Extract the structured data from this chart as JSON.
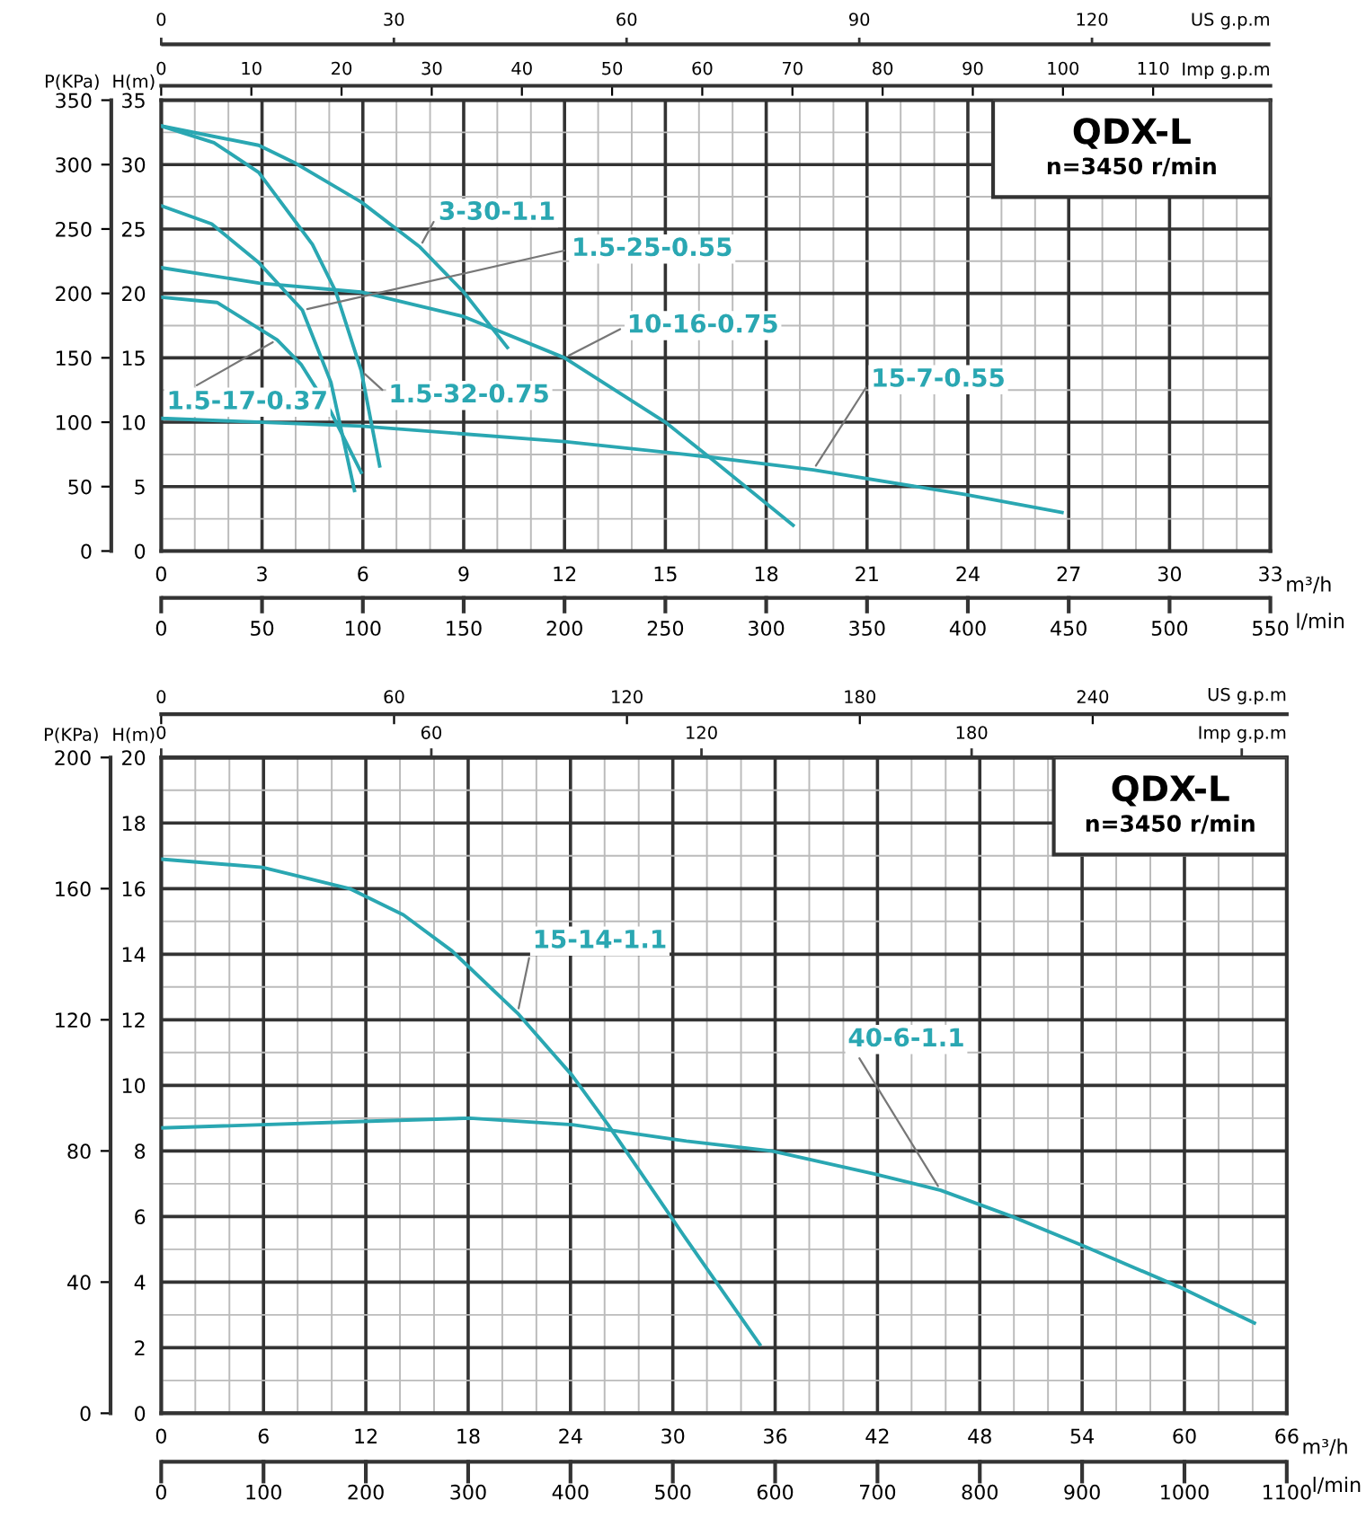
{
  "chart_data": [
    {
      "type": "line",
      "xlabel": "m³/h",
      "ylabel": "H(m)",
      "y2label": "P(KPa)",
      "x2label": "Imp g.p.m",
      "annotations": [
        "QDX-L",
        "n=3450 r/min",
        "US g.p.m",
        "0",
        "30",
        "60",
        "90",
        "120",
        "l/min",
        "0",
        "50",
        "100",
        "150",
        "200",
        "250",
        "300",
        "350",
        "400",
        "450",
        "500",
        "550"
      ],
      "xlim": [
        0,
        33
      ],
      "xticks": [
        0,
        3,
        6,
        9,
        12,
        15,
        18,
        21,
        24,
        27,
        30,
        33
      ],
      "ylim": [
        0,
        35
      ],
      "yticks": [
        0,
        5,
        10,
        15,
        20,
        25,
        30,
        35
      ],
      "y2lim": [
        0,
        350
      ],
      "y2ticks": [
        0,
        50,
        100,
        150,
        200,
        250,
        300,
        350
      ],
      "x2lim": [
        0,
        123
      ],
      "x2ticks": [
        0,
        10,
        20,
        30,
        40,
        50,
        60,
        70,
        80,
        90,
        100,
        110
      ],
      "grid": true,
      "series": [
        {
          "name": "1.5-32-0.75",
          "color": "#2aa7b2",
          "x": [
            0,
            1.57,
            2.9,
            4.5,
            5.2,
            5.95,
            6.5
          ],
          "values": [
            33.0,
            31.7,
            29.4,
            23.8,
            20.1,
            14.0,
            6.6
          ]
        },
        {
          "name": "3-30-1.1",
          "color": "#2aa7b2",
          "x": [
            0,
            2.9,
            4.0,
            5.95,
            7.7,
            9.0,
            10.3
          ],
          "values": [
            33.0,
            31.5,
            30.1,
            27.1,
            23.6,
            20.1,
            15.8
          ]
        },
        {
          "name": "1.5-25-0.55",
          "color": "#2aa7b2",
          "x": [
            0,
            1.5,
            2.9,
            4.2,
            5.05,
            5.75
          ],
          "values": [
            26.8,
            25.4,
            22.4,
            18.7,
            13.1,
            4.7
          ]
        },
        {
          "name": "1.5-17-0.37",
          "color": "#2aa7b2",
          "x": [
            0,
            1.66,
            3.45,
            4.16,
            5.05,
            5.95
          ],
          "values": [
            19.7,
            19.3,
            16.4,
            14.5,
            10.8,
            6.1
          ]
        },
        {
          "name": "10-16-0.75",
          "color": "#2aa7b2",
          "x": [
            0,
            2.9,
            5.95,
            9.0,
            12,
            15,
            16.3,
            18.8
          ],
          "values": [
            22.0,
            20.8,
            20.1,
            18.2,
            15.0,
            10.0,
            7.3,
            2.0
          ]
        },
        {
          "name": "15-7-0.55",
          "color": "#2aa7b2",
          "x": [
            0,
            5.95,
            12,
            15.6,
            16.3,
            19.4,
            23.9,
            26.8
          ],
          "values": [
            10.3,
            9.7,
            8.5,
            7.5,
            7.3,
            6.3,
            4.4,
            3.0
          ]
        }
      ]
    },
    {
      "type": "line",
      "xlabel": "m³/h",
      "ylabel": "H(m)",
      "y2label": "P(KPa)",
      "x2label": "US g.p.m",
      "annotations": [
        "QDX-L",
        "n=3450 r/min",
        "Imp g.p.m",
        "0",
        "60",
        "120",
        "180",
        "240",
        "l/min",
        "0",
        "100",
        "200",
        "300",
        "400",
        "500",
        "600",
        "700",
        "800",
        "900",
        "1000",
        "1100"
      ],
      "xlim": [
        0,
        66
      ],
      "xticks": [
        0,
        6,
        12,
        18,
        24,
        30,
        36,
        42,
        48,
        54,
        60,
        66
      ],
      "ylim": [
        0,
        20
      ],
      "yticks": [
        0,
        2,
        4,
        6,
        8,
        10,
        12,
        14,
        16,
        18,
        20
      ],
      "y2lim": [
        0,
        200
      ],
      "y2ticks": [
        0,
        40,
        80,
        120,
        160,
        200
      ],
      "x2lim": [
        0,
        290
      ],
      "x2ticks": [
        0,
        60,
        120,
        180,
        240
      ],
      "grid": true,
      "series": [
        {
          "name": "15-14-1.1",
          "color": "#2aa7b2",
          "x": [
            0,
            5.93,
            11.05,
            14.2,
            17.05,
            20.9,
            24.1,
            26.2,
            30.8,
            35.1
          ],
          "values": [
            16.9,
            16.65,
            16.0,
            15.2,
            14.1,
            12.2,
            10.3,
            8.8,
            5.3,
            2.1
          ]
        },
        {
          "name": "40-6-1.1",
          "color": "#2aa7b2",
          "x": [
            0,
            11.8,
            18.1,
            24.1,
            30.8,
            35.8,
            41.8,
            45.7,
            49.9,
            54.1,
            59.7,
            64.1
          ],
          "values": [
            8.7,
            8.9,
            9.0,
            8.8,
            8.3,
            8.0,
            7.3,
            6.8,
            6.0,
            5.1,
            3.85,
            2.75
          ]
        }
      ]
    }
  ]
}
